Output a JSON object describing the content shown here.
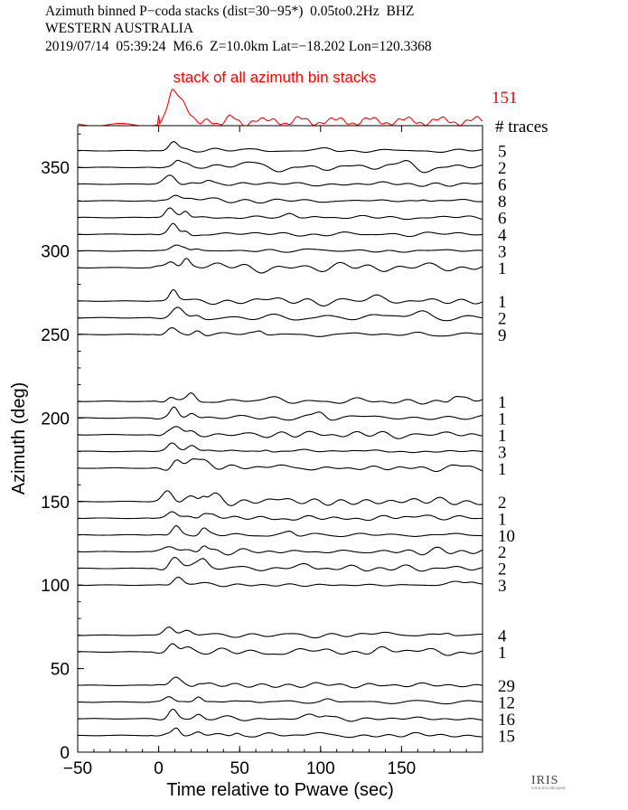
{
  "header": {
    "line1": "Azimuth binned P−coda stacks (dist=30−95*)  0.05to0.2Hz  BHZ",
    "line2": "WESTERN AUSTRALIA",
    "line3": "2019/07/14  05:39:24  M6.6  Z=10.0km Lat=−18.202 Lon=120.3368"
  },
  "logo": {
    "text": "IRIS",
    "subtext": "www.iris.edu/spud"
  },
  "chart_data": {
    "type": "line",
    "title": "Azimuth binned P-coda stacks",
    "xlabel": "Time relative to Pwave (sec)",
    "ylabel": "Azimuth (deg)",
    "xlim": [
      -50,
      200
    ],
    "ylim": [
      0,
      375
    ],
    "xticks": [
      -50,
      0,
      50,
      100,
      150
    ],
    "yticks": [
      0,
      50,
      100,
      150,
      200,
      250,
      300,
      350
    ],
    "colors": {
      "summary": "#ff0000",
      "traces": "#000000"
    },
    "summary_stack": {
      "label": "stack of all azimuth bin stacks",
      "trace_count": "151",
      "count_header": "# traces",
      "arrival_peak_x": 10
    },
    "bins": [
      {
        "azimuth": 360,
        "traces": "5"
      },
      {
        "azimuth": 350,
        "traces": "2"
      },
      {
        "azimuth": 340,
        "traces": "6"
      },
      {
        "azimuth": 330,
        "traces": "8"
      },
      {
        "azimuth": 320,
        "traces": "6"
      },
      {
        "azimuth": 310,
        "traces": "4"
      },
      {
        "azimuth": 300,
        "traces": "3"
      },
      {
        "azimuth": 290,
        "traces": "1"
      },
      {
        "azimuth": 270,
        "traces": "1"
      },
      {
        "azimuth": 260,
        "traces": "2"
      },
      {
        "azimuth": 250,
        "traces": "9"
      },
      {
        "azimuth": 210,
        "traces": "1"
      },
      {
        "azimuth": 200,
        "traces": "1"
      },
      {
        "azimuth": 190,
        "traces": "1"
      },
      {
        "azimuth": 180,
        "traces": "3"
      },
      {
        "azimuth": 170,
        "traces": "1"
      },
      {
        "azimuth": 150,
        "traces": "2"
      },
      {
        "azimuth": 140,
        "traces": "1"
      },
      {
        "azimuth": 130,
        "traces": "10"
      },
      {
        "azimuth": 120,
        "traces": "2"
      },
      {
        "azimuth": 110,
        "traces": "2"
      },
      {
        "azimuth": 100,
        "traces": "3"
      },
      {
        "azimuth": 70,
        "traces": "4"
      },
      {
        "azimuth": 60,
        "traces": "1"
      },
      {
        "azimuth": 40,
        "traces": "29"
      },
      {
        "azimuth": 30,
        "traces": "12"
      },
      {
        "azimuth": 20,
        "traces": "16"
      },
      {
        "azimuth": 10,
        "traces": "15"
      }
    ]
  }
}
